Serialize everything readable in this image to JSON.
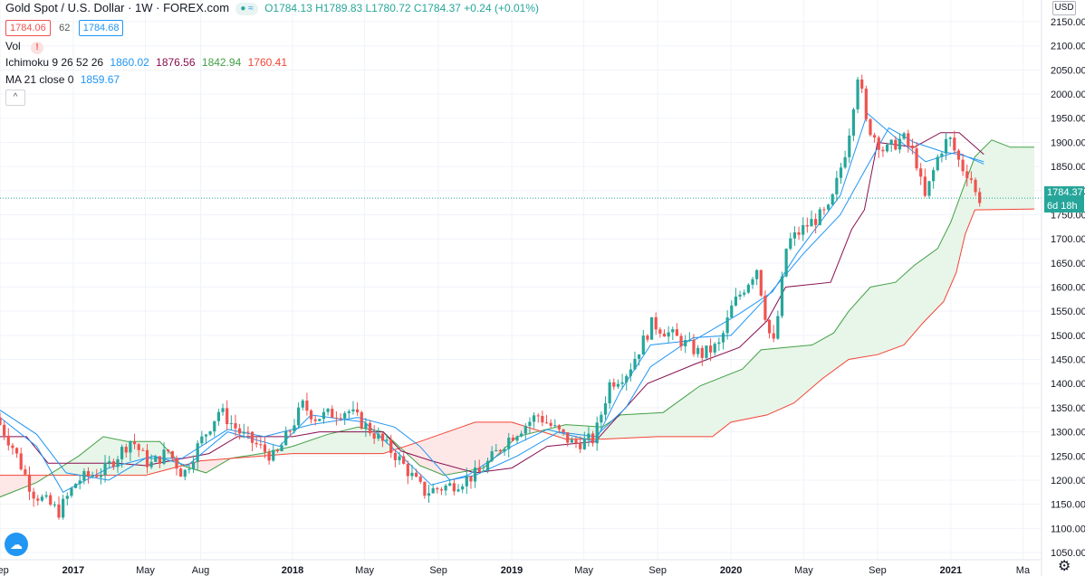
{
  "header": {
    "symbol_title": "Gold Spot / U.S. Dollar · 1W · FOREX.com",
    "ohlc": "O1784.13 H1789.83 L1780.72 C1784.37 +0.24 (+0.01%)",
    "sell_price": "1784.06",
    "spread": "62",
    "buy_price": "1784.68",
    "vol_label": "Vol",
    "vol_warning": "!",
    "ichimoku_label": "Ichimoku 9 26 52 26",
    "ichimoku_values": [
      "1860.02",
      "1876.56",
      "1842.94",
      "1760.41"
    ],
    "ma_label": "MA 21 close 0",
    "ma_value": "1859.67",
    "collapse_icon": "^"
  },
  "axis": {
    "currency": "USD",
    "last_price": "1784.37",
    "countdown": "6d 18h"
  },
  "colors": {
    "up": "#26a69a",
    "down": "#ef5350",
    "ma": "#2196f3",
    "tenkan": "#2196f3",
    "kijun": "#880e4f",
    "senkou_a": "#43a047",
    "senkou_b": "#f44336",
    "cloud_bull": "#e8f5e9",
    "cloud_bear": "#fde8e7",
    "ichimoku_vals": [
      "#2196f3",
      "#880e4f",
      "#43a047",
      "#f44336"
    ]
  },
  "chart_data": {
    "type": "candlestick",
    "title": "Gold Spot / U.S. Dollar · 1W · FOREX.com",
    "y_ticks": [
      1050,
      1100,
      1150,
      1200,
      1250,
      1300,
      1350,
      1400,
      1450,
      1500,
      1550,
      1600,
      1650,
      1700,
      1750,
      1800,
      1850,
      1900,
      1950,
      2000,
      2050,
      2100,
      2150
    ],
    "y_tick_labels": [
      "1050.00",
      "1100.00",
      "1150.00",
      "1200.00",
      "1250.00",
      "1300.00",
      "1350.00",
      "1400.00",
      "1450.00",
      "1500.00",
      "1550.00",
      "1600.00",
      "1650.00",
      "1700.00",
      "1750.00",
      "1800.00",
      "1850.00",
      "1900.00",
      "1950.00",
      "2000.00",
      "2050.00",
      "2100.00",
      "2150.00"
    ],
    "ylim": [
      1035,
      2195
    ],
    "x_start": "2016-09-01",
    "x_end": "2021-06-01",
    "x_ticks": [
      {
        "label": "Sep",
        "date": "2016-09-01"
      },
      {
        "label": "2017",
        "date": "2017-01-01"
      },
      {
        "label": "May",
        "date": "2017-05-01"
      },
      {
        "label": "Aug",
        "date": "2017-08-01"
      },
      {
        "label": "2018",
        "date": "2018-01-01"
      },
      {
        "label": "May",
        "date": "2018-05-01"
      },
      {
        "label": "Sep",
        "date": "2018-09-01"
      },
      {
        "label": "2019",
        "date": "2019-01-01"
      },
      {
        "label": "May",
        "date": "2019-05-01"
      },
      {
        "label": "Sep",
        "date": "2019-09-01"
      },
      {
        "label": "2020",
        "date": "2020-01-01"
      },
      {
        "label": "May",
        "date": "2020-05-01"
      },
      {
        "label": "Sep",
        "date": "2020-09-01"
      },
      {
        "label": "2021",
        "date": "2021-01-01"
      },
      {
        "label": "Ma",
        "date": "2021-05-01"
      }
    ],
    "price_path": [
      [
        "2016-09-01",
        1330
      ],
      [
        "2016-10-01",
        1265
      ],
      [
        "2016-11-01",
        1175
      ],
      [
        "2016-12-15",
        1135
      ],
      [
        "2017-01-15",
        1200
      ],
      [
        "2017-03-01",
        1220
      ],
      [
        "2017-04-15",
        1285
      ],
      [
        "2017-05-15",
        1230
      ],
      [
        "2017-06-15",
        1260
      ],
      [
        "2017-07-10",
        1210
      ],
      [
        "2017-08-01",
        1265
      ],
      [
        "2017-09-08",
        1345
      ],
      [
        "2017-10-15",
        1295
      ],
      [
        "2017-12-10",
        1245
      ],
      [
        "2018-01-25",
        1355
      ],
      [
        "2018-02-15",
        1330
      ],
      [
        "2018-04-10",
        1345
      ],
      [
        "2018-05-25",
        1295
      ],
      [
        "2018-06-30",
        1250
      ],
      [
        "2018-08-15",
        1175
      ],
      [
        "2018-10-01",
        1190
      ],
      [
        "2018-11-15",
        1215
      ],
      [
        "2019-01-01",
        1285
      ],
      [
        "2019-02-20",
        1335
      ],
      [
        "2019-04-20",
        1275
      ],
      [
        "2019-05-25",
        1285
      ],
      [
        "2019-06-20",
        1400
      ],
      [
        "2019-07-20",
        1425
      ],
      [
        "2019-08-30",
        1525
      ],
      [
        "2019-10-15",
        1490
      ],
      [
        "2019-11-20",
        1460
      ],
      [
        "2019-12-20",
        1480
      ],
      [
        "2020-01-10",
        1560
      ],
      [
        "2020-02-20",
        1640
      ],
      [
        "2020-03-10",
        1510
      ],
      [
        "2020-03-20",
        1480
      ],
      [
        "2020-04-10",
        1690
      ],
      [
        "2020-05-15",
        1730
      ],
      [
        "2020-06-20",
        1760
      ],
      [
        "2020-07-20",
        1900
      ],
      [
        "2020-08-07",
        2050
      ],
      [
        "2020-08-20",
        1940
      ],
      [
        "2020-09-20",
        1880
      ],
      [
        "2020-10-20",
        1910
      ],
      [
        "2020-11-10",
        1870
      ],
      [
        "2020-11-25",
        1780
      ],
      [
        "2020-12-20",
        1880
      ],
      [
        "2021-01-05",
        1910
      ],
      [
        "2021-01-25",
        1850
      ],
      [
        "2021-02-10",
        1830
      ],
      [
        "2021-02-20",
        1784
      ]
    ],
    "ma21_path": [
      [
        "2016-09-01",
        1345
      ],
      [
        "2016-11-01",
        1295
      ],
      [
        "2016-12-20",
        1215
      ],
      [
        "2017-03-01",
        1200
      ],
      [
        "2017-05-01",
        1245
      ],
      [
        "2017-07-01",
        1245
      ],
      [
        "2017-09-15",
        1305
      ],
      [
        "2017-11-15",
        1290
      ],
      [
        "2018-02-01",
        1315
      ],
      [
        "2018-04-20",
        1330
      ],
      [
        "2018-06-20",
        1310
      ],
      [
        "2018-08-01",
        1270
      ],
      [
        "2018-09-20",
        1200
      ],
      [
        "2018-11-01",
        1210
      ],
      [
        "2019-01-10",
        1250
      ],
      [
        "2019-03-20",
        1300
      ],
      [
        "2019-05-20",
        1290
      ],
      [
        "2019-07-10",
        1350
      ],
      [
        "2019-08-20",
        1435
      ],
      [
        "2019-10-30",
        1495
      ],
      [
        "2020-01-01",
        1500
      ],
      [
        "2020-03-01",
        1580
      ],
      [
        "2020-05-01",
        1670
      ],
      [
        "2020-07-01",
        1750
      ],
      [
        "2020-08-10",
        1840
      ],
      [
        "2020-09-20",
        1930
      ],
      [
        "2020-11-01",
        1900
      ],
      [
        "2020-12-20",
        1880
      ],
      [
        "2021-01-15",
        1875
      ],
      [
        "2021-02-25",
        1860
      ]
    ],
    "tenkan_path": [
      [
        "2016-09-01",
        1330
      ],
      [
        "2016-11-01",
        1270
      ],
      [
        "2016-12-15",
        1175
      ],
      [
        "2017-03-01",
        1225
      ],
      [
        "2017-05-15",
        1250
      ],
      [
        "2017-07-10",
        1230
      ],
      [
        "2017-09-15",
        1300
      ],
      [
        "2017-12-10",
        1270
      ],
      [
        "2018-02-01",
        1335
      ],
      [
        "2018-05-01",
        1320
      ],
      [
        "2018-07-01",
        1250
      ],
      [
        "2018-08-20",
        1190
      ],
      [
        "2018-10-20",
        1210
      ],
      [
        "2019-01-01",
        1270
      ],
      [
        "2019-03-01",
        1305
      ],
      [
        "2019-05-20",
        1280
      ],
      [
        "2019-07-01",
        1385
      ],
      [
        "2019-08-20",
        1480
      ],
      [
        "2019-11-01",
        1490
      ],
      [
        "2020-01-15",
        1545
      ],
      [
        "2020-03-10",
        1590
      ],
      [
        "2020-04-20",
        1670
      ],
      [
        "2020-07-01",
        1790
      ],
      [
        "2020-08-15",
        1960
      ],
      [
        "2020-10-01",
        1910
      ],
      [
        "2020-11-20",
        1860
      ],
      [
        "2021-01-10",
        1880
      ],
      [
        "2021-02-25",
        1855
      ]
    ],
    "kijun_path": [
      [
        "2016-09-01",
        1290
      ],
      [
        "2016-10-15",
        1290
      ],
      [
        "2016-11-20",
        1235
      ],
      [
        "2017-03-15",
        1235
      ],
      [
        "2017-05-01",
        1230
      ],
      [
        "2017-08-15",
        1255
      ],
      [
        "2017-10-01",
        1290
      ],
      [
        "2018-01-01",
        1290
      ],
      [
        "2018-02-15",
        1300
      ],
      [
        "2018-06-01",
        1300
      ],
      [
        "2018-07-01",
        1260
      ],
      [
        "2018-08-20",
        1240
      ],
      [
        "2018-11-01",
        1215
      ],
      [
        "2019-01-01",
        1225
      ],
      [
        "2019-03-01",
        1270
      ],
      [
        "2019-05-20",
        1280
      ],
      [
        "2019-06-25",
        1330
      ],
      [
        "2019-08-15",
        1400
      ],
      [
        "2019-11-01",
        1440
      ],
      [
        "2020-01-15",
        1475
      ],
      [
        "2020-03-01",
        1530
      ],
      [
        "2020-04-01",
        1600
      ],
      [
        "2020-06-15",
        1610
      ],
      [
        "2020-07-20",
        1720
      ],
      [
        "2020-08-10",
        1760
      ],
      [
        "2020-09-01",
        1900
      ],
      [
        "2020-11-01",
        1890
      ],
      [
        "2020-12-15",
        1920
      ],
      [
        "2021-01-15",
        1920
      ],
      [
        "2021-02-25",
        1875
      ]
    ],
    "senkou_a_path": [
      [
        "2016-09-01",
        1165
      ],
      [
        "2016-11-01",
        1195
      ],
      [
        "2017-01-10",
        1250
      ],
      [
        "2017-02-20",
        1290
      ],
      [
        "2017-04-01",
        1280
      ],
      [
        "2017-05-25",
        1280
      ],
      [
        "2017-07-01",
        1230
      ],
      [
        "2017-08-10",
        1215
      ],
      [
        "2017-09-20",
        1245
      ],
      [
        "2017-11-10",
        1255
      ],
      [
        "2018-01-01",
        1270
      ],
      [
        "2018-03-01",
        1295
      ],
      [
        "2018-04-20",
        1310
      ],
      [
        "2018-06-01",
        1300
      ],
      [
        "2018-08-01",
        1230
      ],
      [
        "2018-09-10",
        1210
      ],
      [
        "2018-11-15",
        1225
      ],
      [
        "2019-01-10",
        1290
      ],
      [
        "2019-04-01",
        1315
      ],
      [
        "2019-06-01",
        1310
      ],
      [
        "2019-07-01",
        1335
      ],
      [
        "2019-09-10",
        1340
      ],
      [
        "2019-11-10",
        1395
      ],
      [
        "2020-01-20",
        1430
      ],
      [
        "2020-02-20",
        1470
      ],
      [
        "2020-04-01",
        1475
      ],
      [
        "2020-05-15",
        1480
      ],
      [
        "2020-06-20",
        1505
      ],
      [
        "2020-07-15",
        1550
      ],
      [
        "2020-08-20",
        1600
      ],
      [
        "2020-10-01",
        1610
      ],
      [
        "2020-11-01",
        1645
      ],
      [
        "2020-12-10",
        1680
      ],
      [
        "2021-01-01",
        1735
      ],
      [
        "2021-01-20",
        1800
      ],
      [
        "2021-02-10",
        1870
      ],
      [
        "2021-03-10",
        1905
      ],
      [
        "2021-04-10",
        1890
      ],
      [
        "2021-05-20",
        1890
      ]
    ],
    "senkou_b_path": [
      [
        "2016-09-01",
        1210
      ],
      [
        "2017-05-01",
        1210
      ],
      [
        "2017-08-01",
        1240
      ],
      [
        "2018-01-01",
        1255
      ],
      [
        "2018-03-01",
        1255
      ],
      [
        "2018-06-01",
        1255
      ],
      [
        "2018-08-01",
        1280
      ],
      [
        "2018-11-01",
        1320
      ],
      [
        "2019-01-01",
        1320
      ],
      [
        "2019-04-01",
        1285
      ],
      [
        "2019-06-01",
        1285
      ],
      [
        "2019-09-01",
        1290
      ],
      [
        "2019-12-01",
        1290
      ],
      [
        "2020-01-01",
        1320
      ],
      [
        "2020-03-01",
        1335
      ],
      [
        "2020-04-15",
        1360
      ],
      [
        "2020-06-01",
        1410
      ],
      [
        "2020-07-15",
        1450
      ],
      [
        "2020-09-01",
        1460
      ],
      [
        "2020-10-15",
        1480
      ],
      [
        "2020-11-15",
        1525
      ],
      [
        "2020-12-20",
        1570
      ],
      [
        "2021-01-10",
        1630
      ],
      [
        "2021-01-25",
        1710
      ],
      [
        "2021-02-10",
        1760
      ],
      [
        "2021-05-20",
        1762
      ]
    ]
  }
}
